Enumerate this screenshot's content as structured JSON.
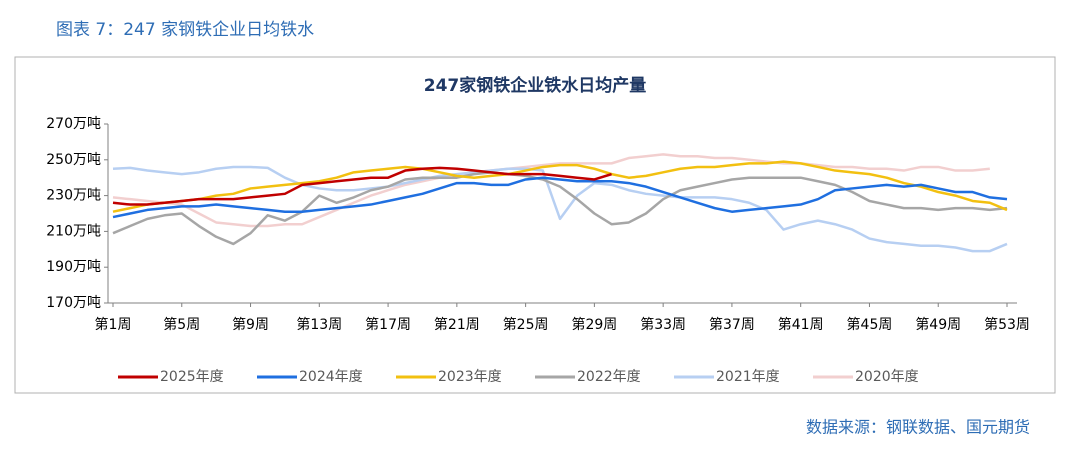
{
  "header": {
    "title": "图表 7：247 家钢铁企业日均铁水"
  },
  "source": "数据来源：钢联数据、国元期货",
  "chart_data": {
    "type": "line",
    "title": "247家钢铁企业铁水日均产量",
    "x": [
      1,
      2,
      3,
      4,
      5,
      6,
      7,
      8,
      9,
      10,
      11,
      12,
      13,
      14,
      15,
      16,
      17,
      18,
      19,
      20,
      21,
      22,
      23,
      24,
      25,
      26,
      27,
      28,
      29,
      30,
      31,
      32,
      33,
      34,
      35,
      36,
      37,
      38,
      39,
      40,
      41,
      42,
      43,
      44,
      45,
      46,
      47,
      48,
      49,
      50,
      51,
      52,
      53
    ],
    "xlim": [
      1,
      53
    ],
    "xticks": [
      {
        "value": 1,
        "label": "第1周"
      },
      {
        "value": 5,
        "label": "第5周"
      },
      {
        "value": 9,
        "label": "第9周"
      },
      {
        "value": 13,
        "label": "第13周"
      },
      {
        "value": 17,
        "label": "第17周"
      },
      {
        "value": 21,
        "label": "第21周"
      },
      {
        "value": 25,
        "label": "第25周"
      },
      {
        "value": 29,
        "label": "第29周"
      },
      {
        "value": 33,
        "label": "第33周"
      },
      {
        "value": 37,
        "label": "第37周"
      },
      {
        "value": 41,
        "label": "第41周"
      },
      {
        "value": 45,
        "label": "第45周"
      },
      {
        "value": 49,
        "label": "第49周"
      },
      {
        "value": 53,
        "label": "第53周"
      }
    ],
    "ylim": [
      170,
      270
    ],
    "yticks": [
      {
        "value": 170,
        "label": "170万吨"
      },
      {
        "value": 190,
        "label": "190万吨"
      },
      {
        "value": 210,
        "label": "210万吨"
      },
      {
        "value": 230,
        "label": "230万吨"
      },
      {
        "value": 250,
        "label": "250万吨"
      },
      {
        "value": 270,
        "label": "270万吨"
      }
    ],
    "legend": "bottom",
    "series": [
      {
        "name": "2025年度",
        "color": "#c00000",
        "values": [
          226,
          225,
          225,
          226,
          227,
          228,
          228,
          228,
          229,
          230,
          231,
          236,
          237,
          238,
          239,
          240,
          240,
          244,
          245,
          245.5,
          245,
          244,
          243,
          242,
          242,
          242,
          241,
          240,
          239,
          242,
          null,
          null,
          null,
          null,
          null,
          null,
          null,
          null,
          null,
          null,
          null,
          null,
          null,
          null,
          null,
          null,
          null,
          null,
          null,
          null,
          null,
          null,
          null
        ]
      },
      {
        "name": "2024年度",
        "color": "#1f6fe0",
        "values": [
          218,
          220,
          222,
          223,
          224,
          224,
          225,
          224,
          223,
          222,
          221,
          221,
          222,
          223,
          224,
          225,
          227,
          229,
          231,
          234,
          237,
          237,
          236,
          236,
          239,
          240,
          239,
          238,
          238,
          238,
          237,
          235,
          232,
          229,
          226,
          223,
          221,
          222,
          223,
          224,
          225,
          228,
          233,
          234,
          235,
          236,
          235,
          236,
          234,
          232,
          232,
          229,
          228
        ]
      },
      {
        "name": "2023年度",
        "color": "#f2c010",
        "values": [
          221,
          223,
          225,
          226,
          227,
          228,
          230,
          231,
          234,
          235,
          236,
          237,
          238,
          240,
          243,
          244,
          245,
          246,
          245,
          243,
          241,
          240,
          241,
          242,
          244,
          246,
          247,
          247,
          245,
          242,
          240,
          241,
          243,
          245,
          246,
          246,
          247,
          248,
          248,
          249,
          248,
          246,
          244,
          243,
          242,
          240,
          237,
          235,
          232,
          230,
          227,
          226,
          222
        ]
      },
      {
        "name": "2022年度",
        "color": "#a6a6a6",
        "values": [
          209,
          213,
          217,
          219,
          220,
          213,
          207,
          203,
          209,
          219,
          216,
          221,
          230,
          226,
          229,
          233,
          235,
          239,
          240,
          240,
          240,
          242,
          243,
          242,
          241,
          239,
          235,
          228,
          220,
          214,
          215,
          220,
          228,
          233,
          235,
          237,
          239,
          240,
          240,
          240,
          240,
          238,
          236,
          232,
          227,
          225,
          223,
          223,
          222,
          223,
          223,
          222,
          223
        ]
      },
      {
        "name": "2021年度",
        "color": "#b7cff2",
        "values": [
          245,
          245.5,
          244,
          243,
          242,
          243,
          245,
          246,
          246,
          245.5,
          240,
          236,
          234,
          233,
          233,
          234,
          235,
          237,
          239,
          241,
          242,
          243,
          244,
          245,
          245,
          244,
          217,
          230,
          237,
          236,
          233,
          231,
          230,
          229,
          229,
          229,
          228,
          226,
          222,
          211,
          214,
          216,
          214,
          211,
          206,
          204,
          203,
          202,
          202,
          201,
          199,
          199,
          203
        ]
      },
      {
        "name": "2020年度",
        "color": "#f2cfcf",
        "values": [
          229,
          228,
          227,
          226,
          225,
          220,
          215,
          214,
          213,
          213,
          214,
          214,
          218,
          222,
          226,
          230,
          233,
          236,
          238,
          240,
          241,
          243,
          244,
          245,
          246,
          247,
          248,
          248,
          248,
          248,
          251,
          252,
          253,
          252,
          252,
          251,
          251,
          250,
          249,
          248,
          248,
          247,
          246,
          246,
          245,
          245,
          244,
          246,
          246,
          244,
          244,
          245,
          null
        ]
      }
    ]
  }
}
